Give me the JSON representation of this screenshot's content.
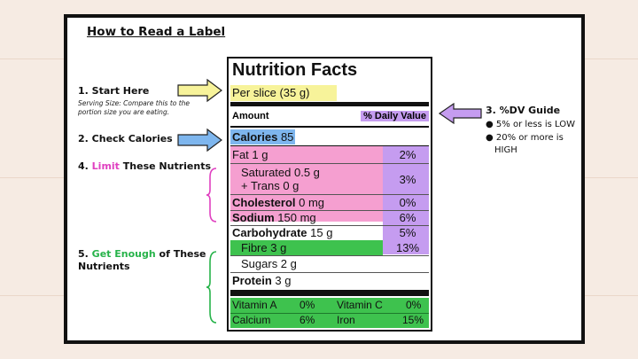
{
  "title": "How to Read a Label",
  "steps": {
    "start": "1. Start Here",
    "start_note": "Serving Size: Compare this to the portion size you are eating.",
    "check": "2. Check Calories",
    "limit_pre": "4. ",
    "limit_hl": "Limit",
    "limit_post": " These Nutrients",
    "enough_pre": "5. ",
    "enough_hl": "Get Enough",
    "enough_post": " of These Nutrients",
    "dv": "3. %DV Guide",
    "dv_1": "● 5% or less is LOW",
    "dv_2": "● 20% or more is",
    "dv_3": "HIGH"
  },
  "label": {
    "heading": "Nutrition Facts",
    "serving": "Per slice (35 g)",
    "amount": "Amount",
    "daily_value": "% Daily Value",
    "calories_label": "Calories",
    "calories_value": "85",
    "fat": "Fat 1 g",
    "fat_pct": "2%",
    "saturated": "Saturated 0.5 g",
    "trans": "+ Trans 0 g",
    "sat_pct": "3%",
    "cholesterol": "Cholesterol",
    "cholesterol_value": "0 mg",
    "chol_pct": "0%",
    "sodium": "Sodium",
    "sodium_value": "150 mg",
    "sodium_pct": "6%",
    "carb": "Carbohydrate",
    "carb_value": "15 g",
    "carb_pct": "5%",
    "fibre": "Fibre 3 g",
    "fibre_pct": "13%",
    "sugars": "Sugars 2 g",
    "protein": "Protein",
    "protein_value": "3 g",
    "vit_a": "Vitamin A",
    "vit_a_pct": "0%",
    "vit_c": "Vitamin C",
    "vit_c_pct": "0%",
    "calcium": "Calcium",
    "calcium_pct": "6%",
    "iron": "Iron",
    "iron_pct": "15%"
  },
  "colors": {
    "serving_yellow": "#f7f39a",
    "calories_blue": "#7eb6ee",
    "limit_pink": "#f59fd0",
    "dv_purple": "#c59cf0",
    "enough_green": "#3ec24e"
  }
}
